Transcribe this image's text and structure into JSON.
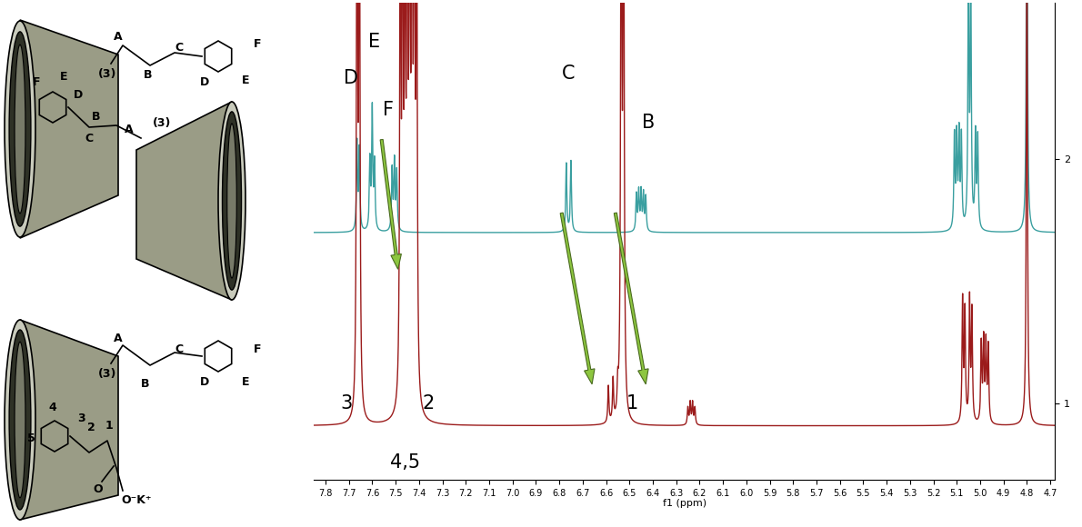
{
  "chart_data": {
    "type": "line",
    "xlabel": "f1 (ppm)",
    "xlim": [
      7.85,
      4.68
    ],
    "xticks": [
      7.8,
      7.7,
      7.6,
      7.5,
      7.4,
      7.3,
      7.2,
      7.1,
      7.0,
      6.9,
      6.8,
      6.7,
      6.6,
      6.5,
      6.4,
      6.3,
      6.2,
      6.1,
      6.0,
      5.9,
      5.8,
      5.7,
      5.6,
      5.5,
      5.4,
      5.3,
      5.2,
      5.1,
      5.0,
      4.9,
      4.8,
      4.7
    ],
    "ylim": [
      0.69,
      2.64
    ],
    "yticks": [
      1,
      2
    ],
    "series": [
      {
        "color": "#3a9fa0",
        "baseline": 1.7,
        "peaks": {
          "x": [
            7.665,
            7.655,
            7.61,
            7.6,
            7.59,
            7.515,
            7.505,
            7.495,
            6.77,
            6.75,
            6.47,
            6.46,
            6.45,
            6.44,
            6.43,
            5.11,
            5.1,
            5.09,
            5.08,
            5.05,
            5.04,
            5.02,
            5.01,
            4.8
          ],
          "height": [
            2.06,
            2.03,
            1.98,
            2.19,
            1.97,
            1.95,
            1.98,
            1.94,
            1.98,
            1.99,
            1.85,
            1.86,
            1.86,
            1.85,
            1.84,
            2.08,
            2.07,
            2.08,
            2.07,
            2.7,
            2.7,
            2.08,
            2.07,
            3.5
          ]
        }
      },
      {
        "color": "#9b1b1b",
        "baseline": 0.91,
        "peaks": {
          "x": [
            7.665,
            7.655,
            7.48,
            7.47,
            7.46,
            7.45,
            7.44,
            7.43,
            7.42,
            7.41,
            6.59,
            6.57,
            6.55,
            6.535,
            6.525,
            6.25,
            6.24,
            6.23,
            6.22,
            5.075,
            5.065,
            5.045,
            5.035,
            4.995,
            4.985,
            4.975,
            4.965,
            4.8
          ],
          "height": [
            3.5,
            3.5,
            3.2,
            3.3,
            3.0,
            3.4,
            3.3,
            3.5,
            3.6,
            3.2,
            1.06,
            1.08,
            1.02,
            3.6,
            3.6,
            0.98,
            1.0,
            1.0,
            0.98,
            1.41,
            1.36,
            1.41,
            1.36,
            1.23,
            1.24,
            1.23,
            1.22,
            3.0
          ]
        }
      }
    ],
    "annotations": [
      {
        "text": "D",
        "x": 7.69,
        "y": 2.33
      },
      {
        "text": "E",
        "x": 7.59,
        "y": 2.48
      },
      {
        "text": "F",
        "x": 7.53,
        "y": 2.2
      },
      {
        "text": "C",
        "x": 6.76,
        "y": 2.35
      },
      {
        "text": "B",
        "x": 6.42,
        "y": 2.15
      },
      {
        "text": "3",
        "x": 7.71,
        "y": 1.0
      },
      {
        "text": "2",
        "x": 7.36,
        "y": 1.0
      },
      {
        "text": "1",
        "x": 6.49,
        "y": 1.0
      },
      {
        "text": "4,5",
        "x": 7.46,
        "y": 0.76
      }
    ],
    "diagram_labels": {
      "top": [
        "A",
        "B",
        "C",
        "(3)",
        "F",
        "D",
        "E",
        "F",
        "E",
        "D",
        "C",
        "B",
        "A",
        "(3)"
      ],
      "bottom": [
        "A",
        "B",
        "C",
        "(3)",
        "F",
        "D",
        "E",
        "1",
        "2",
        "3",
        "4",
        "5",
        "O",
        "O⁻K⁺"
      ]
    }
  }
}
